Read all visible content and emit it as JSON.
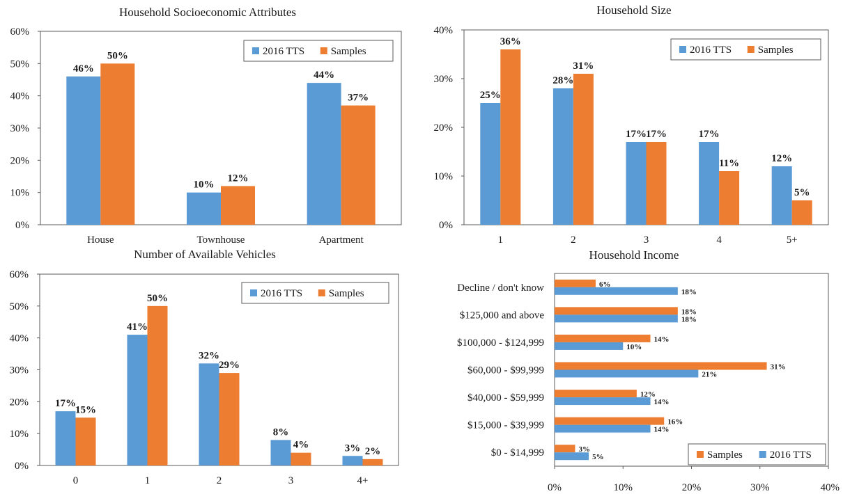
{
  "colors": {
    "tts": "#5B9BD5",
    "samples": "#ED7D31",
    "axis": "#595959",
    "text": "#1a1a1a"
  },
  "chart_data": [
    {
      "id": "socio",
      "type": "bar",
      "title": "Household Socioeconomic Attributes",
      "xlabel": "",
      "ylabel": "",
      "ylim": [
        0,
        60
      ],
      "yticks": [
        "0%",
        "10%",
        "20%",
        "30%",
        "40%",
        "50%",
        "60%"
      ],
      "categories": [
        "House",
        "Townhouse",
        "Apartment"
      ],
      "series": [
        {
          "name": "2016 TTS",
          "color": "#5B9BD5",
          "values": [
            46,
            10,
            44
          ],
          "labels": [
            "46%",
            "10%",
            "44%"
          ]
        },
        {
          "name": "Samples",
          "color": "#ED7D31",
          "values": [
            50,
            12,
            37
          ],
          "labels": [
            "50%",
            "12%",
            "37%"
          ]
        }
      ],
      "legend": "top-right",
      "grid": false
    },
    {
      "id": "size",
      "type": "bar",
      "title": "Household Size",
      "xlabel": "",
      "ylabel": "",
      "ylim": [
        0,
        40
      ],
      "yticks": [
        "0%",
        "10%",
        "20%",
        "30%",
        "40%"
      ],
      "categories": [
        "1",
        "2",
        "3",
        "4",
        "5+"
      ],
      "series": [
        {
          "name": "2016 TTS",
          "color": "#5B9BD5",
          "values": [
            25,
            28,
            17,
            17,
            12
          ],
          "labels": [
            "25%",
            "28%",
            "17%",
            "17%",
            "12%"
          ]
        },
        {
          "name": "Samples",
          "color": "#ED7D31",
          "values": [
            36,
            31,
            17,
            11,
            5
          ],
          "labels": [
            "36%",
            "31%",
            "17%",
            "11%",
            "5%"
          ]
        }
      ],
      "legend": "top-right",
      "grid": false
    },
    {
      "id": "vehicles",
      "type": "bar",
      "title": "Number of Available Vehicles",
      "xlabel": "",
      "ylabel": "",
      "ylim": [
        0,
        60
      ],
      "yticks": [
        "0%",
        "10%",
        "20%",
        "30%",
        "40%",
        "50%",
        "60%"
      ],
      "categories": [
        "0",
        "1",
        "2",
        "3",
        "4+"
      ],
      "series": [
        {
          "name": "2016 TTS",
          "color": "#5B9BD5",
          "values": [
            17,
            41,
            32,
            8,
            3
          ],
          "labels": [
            "17%",
            "41%",
            "32%",
            "8%",
            "3%"
          ]
        },
        {
          "name": "Samples",
          "color": "#ED7D31",
          "values": [
            15,
            50,
            29,
            4,
            2
          ],
          "labels": [
            "15%",
            "50%",
            "29%",
            "4%",
            "2%"
          ]
        }
      ],
      "legend": "top-right",
      "grid": false
    },
    {
      "id": "income",
      "type": "bar",
      "orientation": "horizontal",
      "title": "Household Income",
      "xlabel": "",
      "ylabel": "",
      "xlim": [
        0,
        40
      ],
      "xticks": [
        "0%",
        "10%",
        "20%",
        "30%",
        "40%"
      ],
      "categories": [
        "Decline / don't know",
        "$125,000 and above",
        "$100,000 - $124,999",
        "$60,000 - $99,999",
        "$40,000 - $59,999",
        "$15,000 - $39,999",
        "$0 - $14,999"
      ],
      "series": [
        {
          "name": "Samples",
          "color": "#ED7D31",
          "values": [
            6,
            18,
            14,
            31,
            12,
            16,
            3
          ],
          "labels": [
            "6%",
            "18%",
            "14%",
            "31%",
            "12%",
            "16%",
            "3%"
          ]
        },
        {
          "name": "2016 TTS",
          "color": "#5B9BD5",
          "values": [
            18,
            18,
            10,
            21,
            14,
            14,
            5
          ],
          "labels": [
            "18%",
            "18%",
            "10%",
            "21%",
            "14%",
            "14%",
            "5%"
          ]
        }
      ],
      "legend": "bottom-right",
      "grid": false
    }
  ]
}
